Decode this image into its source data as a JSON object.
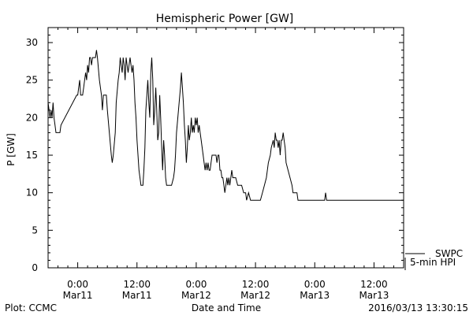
{
  "chart_data": {
    "type": "line",
    "title": "Hemispheric Power [GW]",
    "xlabel": "Date and Time",
    "ylabel": "P [GW]",
    "ylim": [
      0,
      32
    ],
    "yticks": [
      0,
      5,
      10,
      15,
      20,
      25,
      30
    ],
    "x_unit": "hours from 2016-03-10 18:00",
    "xlim": [
      0,
      72
    ],
    "xticks": [
      {
        "x": 6,
        "time": "0:00",
        "date": "Mar11"
      },
      {
        "x": 18,
        "time": "12:00",
        "date": "Mar11"
      },
      {
        "x": 30,
        "time": "0:00",
        "date": "Mar12"
      },
      {
        "x": 42,
        "time": "12:00",
        "date": "Mar12"
      },
      {
        "x": 54,
        "time": "0:00",
        "date": "Mar13"
      },
      {
        "x": 66,
        "time": "12:00",
        "date": "Mar13"
      }
    ],
    "series": [
      {
        "name": "",
        "color": "#000000",
        "points": [
          [
            0,
            22
          ],
          [
            0.4,
            20
          ],
          [
            0.6,
            21
          ],
          [
            0.8,
            20
          ],
          [
            1.0,
            22
          ],
          [
            1.2,
            20
          ],
          [
            1.4,
            19
          ],
          [
            1.6,
            18
          ],
          [
            2.4,
            18
          ],
          [
            2.6,
            19
          ],
          [
            5.8,
            23
          ],
          [
            6.0,
            23
          ],
          [
            6.2,
            24
          ],
          [
            6.4,
            25
          ],
          [
            6.6,
            23
          ],
          [
            7.0,
            23
          ],
          [
            7.2,
            24
          ],
          [
            7.6,
            26
          ],
          [
            7.8,
            25
          ],
          [
            8.0,
            27
          ],
          [
            8.2,
            26
          ],
          [
            8.4,
            28
          ],
          [
            8.6,
            28
          ],
          [
            8.8,
            27
          ],
          [
            9.0,
            28
          ],
          [
            9.2,
            28
          ],
          [
            9.6,
            28
          ],
          [
            9.8,
            29
          ],
          [
            10.0,
            28
          ],
          [
            10.4,
            25
          ],
          [
            10.8,
            23
          ],
          [
            11.0,
            21
          ],
          [
            11.2,
            23
          ],
          [
            11.4,
            23
          ],
          [
            11.6,
            23
          ],
          [
            11.8,
            23
          ],
          [
            12.0,
            21
          ],
          [
            12.4,
            18
          ],
          [
            12.8,
            15
          ],
          [
            13.0,
            14
          ],
          [
            13.2,
            15
          ],
          [
            13.6,
            18
          ],
          [
            13.8,
            22
          ],
          [
            14.2,
            25
          ],
          [
            14.4,
            26
          ],
          [
            14.6,
            28
          ],
          [
            14.8,
            27
          ],
          [
            15.0,
            26
          ],
          [
            15.2,
            28
          ],
          [
            15.4,
            27
          ],
          [
            15.6,
            25
          ],
          [
            15.8,
            28
          ],
          [
            16.0,
            27
          ],
          [
            16.2,
            26
          ],
          [
            16.4,
            27
          ],
          [
            16.6,
            28
          ],
          [
            16.8,
            27
          ],
          [
            17.0,
            26
          ],
          [
            17.2,
            27
          ],
          [
            17.4,
            25
          ],
          [
            17.6,
            22
          ],
          [
            17.8,
            20
          ],
          [
            18.0,
            17
          ],
          [
            18.4,
            13
          ],
          [
            18.8,
            11
          ],
          [
            19.2,
            11
          ],
          [
            19.4,
            13
          ],
          [
            19.6,
            16
          ],
          [
            19.8,
            21
          ],
          [
            20.0,
            23
          ],
          [
            20.2,
            25
          ],
          [
            20.4,
            22
          ],
          [
            20.6,
            20
          ],
          [
            20.8,
            26
          ],
          [
            21.0,
            28
          ],
          [
            21.2,
            25
          ],
          [
            21.4,
            19
          ],
          [
            21.6,
            21
          ],
          [
            21.8,
            24
          ],
          [
            22.0,
            21
          ],
          [
            22.2,
            17
          ],
          [
            22.4,
            18
          ],
          [
            22.6,
            23
          ],
          [
            22.8,
            20
          ],
          [
            23.0,
            16
          ],
          [
            23.2,
            13
          ],
          [
            23.4,
            17
          ],
          [
            23.6,
            15
          ],
          [
            23.8,
            12
          ],
          [
            24.0,
            11
          ],
          [
            25.0,
            11
          ],
          [
            25.4,
            12
          ],
          [
            25.6,
            13
          ],
          [
            25.8,
            15
          ],
          [
            26.0,
            18
          ],
          [
            26.4,
            21
          ],
          [
            26.8,
            24
          ],
          [
            27.0,
            26
          ],
          [
            27.2,
            24
          ],
          [
            27.4,
            22
          ],
          [
            27.6,
            19
          ],
          [
            27.8,
            17
          ],
          [
            28.0,
            14
          ],
          [
            28.2,
            16
          ],
          [
            28.4,
            19
          ],
          [
            28.6,
            17
          ],
          [
            28.8,
            18
          ],
          [
            29.0,
            20
          ],
          [
            29.2,
            18
          ],
          [
            29.4,
            19
          ],
          [
            29.6,
            18
          ],
          [
            29.8,
            20
          ],
          [
            30.0,
            19
          ],
          [
            30.2,
            20
          ],
          [
            30.4,
            18
          ],
          [
            30.6,
            19
          ],
          [
            30.8,
            18
          ],
          [
            31.0,
            17
          ],
          [
            31.4,
            15
          ],
          [
            31.6,
            14
          ],
          [
            31.8,
            13
          ],
          [
            32.0,
            14
          ],
          [
            32.2,
            13
          ],
          [
            32.4,
            14
          ],
          [
            32.6,
            13
          ],
          [
            32.8,
            13
          ],
          [
            33.0,
            14
          ],
          [
            33.2,
            15
          ],
          [
            33.6,
            15
          ],
          [
            34.0,
            15
          ],
          [
            34.2,
            14
          ],
          [
            34.4,
            15
          ],
          [
            34.6,
            15
          ],
          [
            34.8,
            13
          ],
          [
            35.0,
            13
          ],
          [
            35.2,
            12
          ],
          [
            35.4,
            12
          ],
          [
            35.6,
            11
          ],
          [
            35.8,
            10
          ],
          [
            36.0,
            11
          ],
          [
            36.2,
            12
          ],
          [
            36.4,
            11
          ],
          [
            36.6,
            12
          ],
          [
            36.8,
            11
          ],
          [
            37.0,
            12
          ],
          [
            37.2,
            13
          ],
          [
            37.4,
            12
          ],
          [
            37.6,
            12
          ],
          [
            38.0,
            12
          ],
          [
            38.4,
            11
          ],
          [
            39.2,
            11
          ],
          [
            39.6,
            10
          ],
          [
            40.0,
            10
          ],
          [
            40.2,
            9
          ],
          [
            40.6,
            10
          ],
          [
            41.0,
            9
          ],
          [
            42.0,
            9
          ],
          [
            43.0,
            9
          ],
          [
            43.4,
            10
          ],
          [
            43.8,
            11
          ],
          [
            44.2,
            12
          ],
          [
            44.6,
            14
          ],
          [
            45.0,
            15
          ],
          [
            45.2,
            16
          ],
          [
            45.6,
            17
          ],
          [
            45.8,
            16
          ],
          [
            46.0,
            18
          ],
          [
            46.2,
            17
          ],
          [
            46.4,
            17
          ],
          [
            46.6,
            16
          ],
          [
            46.8,
            17
          ],
          [
            47.0,
            15
          ],
          [
            47.2,
            17
          ],
          [
            47.4,
            17
          ],
          [
            47.6,
            18
          ],
          [
            47.8,
            17
          ],
          [
            48.0,
            16
          ],
          [
            48.2,
            14
          ],
          [
            48.6,
            13
          ],
          [
            49.0,
            12
          ],
          [
            49.4,
            11
          ],
          [
            49.6,
            10
          ],
          [
            50.0,
            10
          ],
          [
            50.4,
            10
          ],
          [
            50.6,
            9
          ],
          [
            51.0,
            9
          ],
          [
            54.0,
            9
          ],
          [
            56.0,
            9
          ],
          [
            56.2,
            10
          ],
          [
            56.4,
            9
          ],
          [
            58.0,
            9
          ],
          [
            72.0,
            9
          ]
        ]
      }
    ],
    "legend": {
      "placement": "right-bottom",
      "entries": [
        {
          "label": "SWPC",
          "color": "#000000"
        },
        {
          "label": "5-min HPI",
          "color": "#000000"
        }
      ]
    },
    "grid": false
  },
  "footer": {
    "left": "Plot: CCMC",
    "center": "Date and Time",
    "right": "2016/03/13 13:30:15"
  }
}
